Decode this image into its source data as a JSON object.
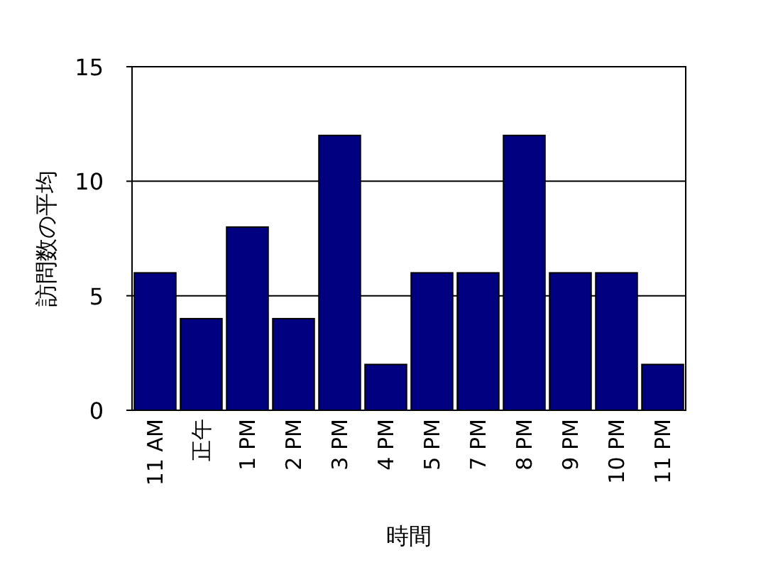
{
  "chart_data": {
    "type": "bar",
    "xlabel": "時間",
    "ylabel": "訪問数の平均",
    "categories": [
      "11 AM",
      "正午",
      "1 PM",
      "2 PM",
      "3 PM",
      "4 PM",
      "5 PM",
      "7 PM",
      "8 PM",
      "9 PM",
      "10 PM",
      "11 PM"
    ],
    "values": [
      6,
      4,
      8,
      4,
      12,
      2,
      6,
      6,
      12,
      6,
      6,
      2
    ],
    "color": "#000080",
    "ylim": [
      0,
      15
    ],
    "yticks": [
      0,
      5,
      10,
      15
    ],
    "grid": "y"
  }
}
